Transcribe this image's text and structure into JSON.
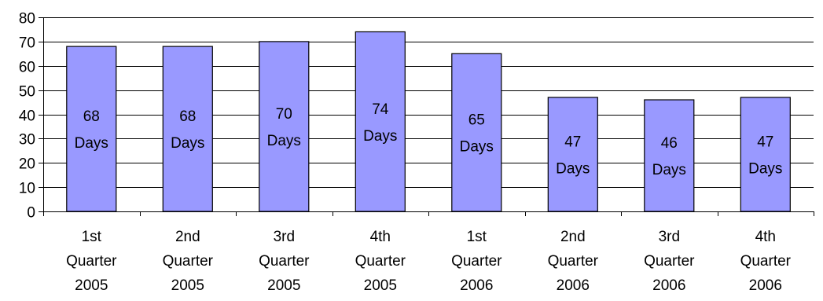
{
  "chart_data": {
    "type": "bar",
    "categories": [
      [
        "1st",
        "Quarter",
        "2005"
      ],
      [
        "2nd",
        "Quarter",
        "2005"
      ],
      [
        "3rd",
        "Quarter",
        "2005"
      ],
      [
        "4th",
        "Quarter",
        "2005"
      ],
      [
        "1st",
        "Quarter",
        "2006"
      ],
      [
        "2nd",
        "Quarter",
        "2006"
      ],
      [
        "3rd",
        "Quarter",
        "2006"
      ],
      [
        "4th",
        "Quarter",
        "2006"
      ]
    ],
    "values": [
      68,
      68,
      70,
      74,
      65,
      47,
      46,
      47
    ],
    "data_labels": [
      [
        "68",
        "Days"
      ],
      [
        "68",
        "Days"
      ],
      [
        "70",
        "Days"
      ],
      [
        "74",
        "Days"
      ],
      [
        "65",
        "Days"
      ],
      [
        "47",
        "Days"
      ],
      [
        "46",
        "Days"
      ],
      [
        "47",
        "Days"
      ]
    ],
    "title": "",
    "xlabel": "",
    "ylabel": "",
    "ylim": [
      0,
      80
    ],
    "yticks": [
      0,
      10,
      20,
      30,
      40,
      50,
      60,
      70,
      80
    ],
    "grid": true,
    "legend": "none",
    "colors": {
      "bar_fill": "#9999FF",
      "bar_stroke": "#000000",
      "grid": "#000000"
    }
  }
}
